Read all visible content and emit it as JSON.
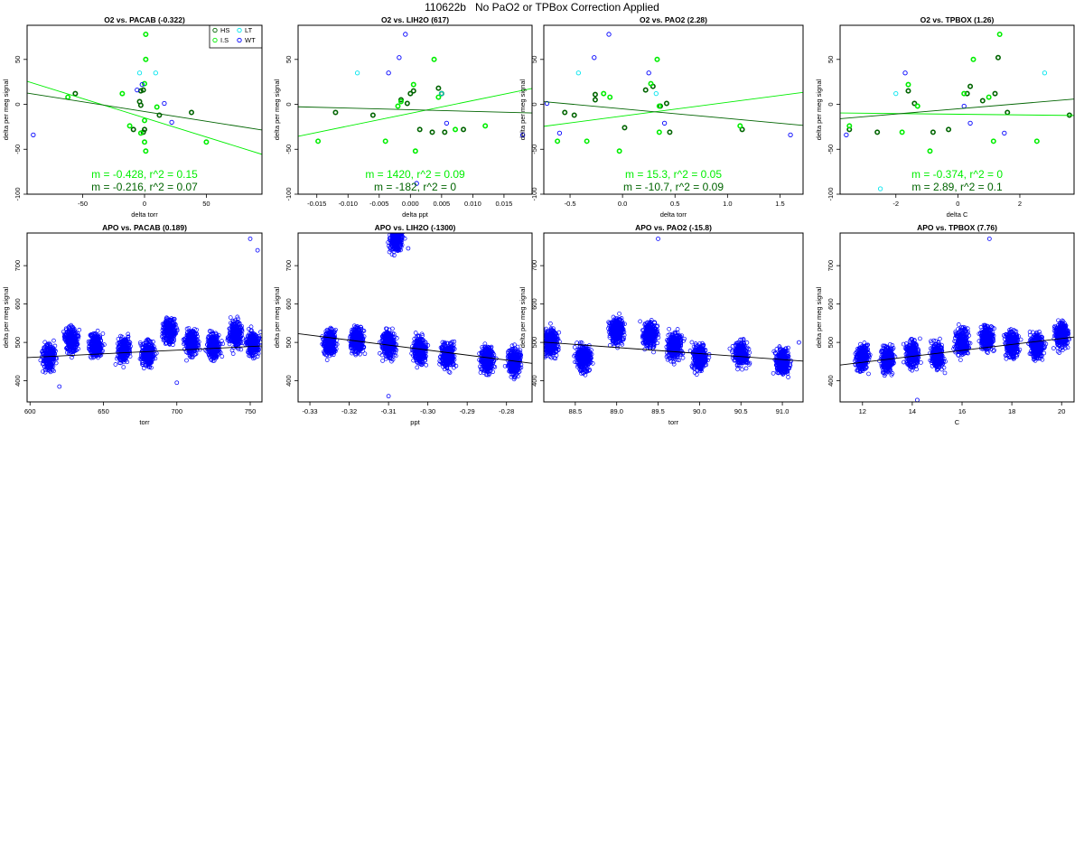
{
  "figure_title": "110622b   No PaO2 or TPBox Correction Applied",
  "colors": {
    "HS": "#006400",
    "I.S": "#00ee00",
    "LT": "#00e5ee",
    "WT": "#0000ff",
    "fit_HS": "#006400",
    "fit_IS": "#00ee00",
    "apo_points": "#0000ff",
    "apo_fit": "#000000"
  },
  "chart_data": [
    {
      "type": "scatter",
      "title": "O2 vs. PACAB (-0.322)",
      "xlabel": "delta torr",
      "ylabel": "delta per meg signal",
      "xlim": [
        -95,
        95
      ],
      "ylim": [
        -100,
        88
      ],
      "xticks": [
        -50,
        0,
        50
      ],
      "xticklabels": [
        "-50",
        "0",
        "50"
      ],
      "yticks": [
        -100,
        -50,
        0,
        50
      ],
      "yticklabels": [
        "-100",
        "-50",
        "0",
        "50"
      ],
      "legend": {
        "placement": "top-right",
        "entries": [
          "HS",
          "LT",
          "I.S",
          "WT"
        ]
      },
      "series": [
        {
          "name": "HS",
          "points": [
            [
              -56,
              12
            ],
            [
              -9,
              -28
            ],
            [
              -4,
              3
            ],
            [
              -3,
              -1
            ],
            [
              -3,
              15
            ],
            [
              -1,
              16
            ],
            [
              0,
              -28
            ],
            [
              12,
              -12
            ],
            [
              38,
              -9
            ],
            [
              -1,
              -31
            ]
          ]
        },
        {
          "name": "I.S",
          "points": [
            [
              -62,
              8
            ],
            [
              -18,
              12
            ],
            [
              -12,
              -24
            ],
            [
              -3,
              -32
            ],
            [
              0,
              23
            ],
            [
              0,
              -42
            ],
            [
              1,
              50
            ],
            [
              1,
              -52
            ],
            [
              0,
              -18
            ],
            [
              10,
              -3
            ],
            [
              50,
              -42
            ],
            [
              1,
              78
            ]
          ]
        },
        {
          "name": "LT",
          "points": [
            [
              9,
              35
            ],
            [
              -4,
              35
            ]
          ]
        },
        {
          "name": "WT",
          "points": [
            [
              -90,
              -34
            ],
            [
              -2,
              22
            ],
            [
              16,
              1
            ],
            [
              22,
              -20
            ],
            [
              -6,
              16
            ]
          ]
        }
      ],
      "fits": [
        {
          "name": "I.S",
          "slope": -0.428,
          "intercept": -15,
          "label": "m = -0.428, r^2 = 0.15"
        },
        {
          "name": "HS",
          "slope": -0.216,
          "intercept": -8,
          "label": "m = -0.216, r^2 = 0.07"
        }
      ]
    },
    {
      "type": "scatter",
      "title": "O2 vs. LIH2O (617)",
      "xlabel": "delta ppt",
      "ylabel": "delta per meg signal",
      "xlim": [
        -0.018,
        0.0195
      ],
      "ylim": [
        -100,
        88
      ],
      "xticks": [
        -0.015,
        -0.01,
        -0.005,
        0,
        0.005,
        0.01,
        0.015
      ],
      "xticklabels": [
        "-0.015",
        "-0.010",
        "-0.005",
        "0.000",
        "0.005",
        "0.010",
        "0.015"
      ],
      "yticks": [
        -100,
        -50,
        0,
        50
      ],
      "yticklabels": [
        "-100",
        "-50",
        "0",
        "50"
      ],
      "series": [
        {
          "name": "HS",
          "points": [
            [
              -0.012,
              -9
            ],
            [
              -0.006,
              -12
            ],
            [
              -0.0015,
              5
            ],
            [
              -0.0005,
              1
            ],
            [
              0,
              12
            ],
            [
              0.0005,
              15
            ],
            [
              0.0015,
              -28
            ],
            [
              0.0045,
              18
            ],
            [
              0.005,
              12
            ],
            [
              0.0055,
              -31
            ],
            [
              0.0085,
              -28
            ],
            [
              0.0035,
              -31
            ]
          ]
        },
        {
          "name": "I.S",
          "points": [
            [
              -0.0148,
              -41
            ],
            [
              -0.004,
              -41
            ],
            [
              -0.002,
              -2
            ],
            [
              0.0005,
              22
            ],
            [
              0.0008,
              -52
            ],
            [
              0.0038,
              50
            ],
            [
              0.0045,
              8
            ],
            [
              0.0072,
              -28
            ],
            [
              0.012,
              -24
            ],
            [
              -0.0015,
              3
            ]
          ]
        },
        {
          "name": "LT",
          "points": [
            [
              -0.0085,
              35
            ],
            [
              0.005,
              12
            ]
          ]
        },
        {
          "name": "WT",
          "points": [
            [
              -0.0035,
              35
            ],
            [
              -0.0018,
              52
            ],
            [
              -0.0008,
              78
            ],
            [
              0.0058,
              -21
            ],
            [
              0.018,
              -34
            ],
            [
              0.001,
              -88
            ]
          ]
        }
      ],
      "fits": [
        {
          "name": "I.S",
          "slope": 1420,
          "intercept": -10,
          "label": "m = 1420, r^2 = 0.09"
        },
        {
          "name": "HS",
          "slope": -182,
          "intercept": -6,
          "label": "m = -182, r^2 = 0"
        }
      ]
    },
    {
      "type": "scatter",
      "title": "O2 vs. PAO2 (2.28)",
      "xlabel": "delta torr",
      "ylabel": "delta per meg signal",
      "xlim": [
        -0.75,
        1.72
      ],
      "ylim": [
        -100,
        88
      ],
      "xticks": [
        -0.5,
        0,
        0.5,
        1,
        1.5
      ],
      "xticklabels": [
        "-0.5",
        "0.0",
        "0.5",
        "1.0",
        "1.5"
      ],
      "yticks": [
        -100,
        -50,
        0,
        50
      ],
      "yticklabels": [
        "-100",
        "-50",
        "0",
        "50"
      ],
      "series": [
        {
          "name": "HS",
          "points": [
            [
              -0.55,
              -9
            ],
            [
              -0.46,
              -12
            ],
            [
              -0.26,
              11
            ],
            [
              -0.26,
              5
            ],
            [
              0.02,
              -26
            ],
            [
              0.22,
              16
            ],
            [
              0.29,
              20
            ],
            [
              0.36,
              -2
            ],
            [
              0.45,
              -31
            ],
            [
              0.42,
              1
            ],
            [
              1.14,
              -28
            ]
          ]
        },
        {
          "name": "I.S",
          "points": [
            [
              -0.62,
              -41
            ],
            [
              -0.34,
              -41
            ],
            [
              -0.18,
              12
            ],
            [
              -0.12,
              8
            ],
            [
              -0.03,
              -52
            ],
            [
              0.27,
              23
            ],
            [
              0.33,
              50
            ],
            [
              0.35,
              -31
            ],
            [
              1.12,
              -24
            ],
            [
              0.35,
              -2
            ]
          ]
        },
        {
          "name": "LT",
          "points": [
            [
              -0.42,
              35
            ],
            [
              0.32,
              12
            ]
          ]
        },
        {
          "name": "WT",
          "points": [
            [
              -0.27,
              52
            ],
            [
              -0.13,
              78
            ],
            [
              0.25,
              35
            ],
            [
              0.4,
              -21
            ],
            [
              1.6,
              -34
            ],
            [
              -0.6,
              -32
            ],
            [
              -0.72,
              1
            ]
          ]
        }
      ],
      "fits": [
        {
          "name": "I.S",
          "slope": 15.3,
          "intercept": -13,
          "label": "m = 15.3, r^2 = 0.05"
        },
        {
          "name": "HS",
          "slope": -10.7,
          "intercept": -5,
          "label": "m = -10.7, r^2 = 0.09"
        }
      ]
    },
    {
      "type": "scatter",
      "title": "O2 vs. TPBOX (1.26)",
      "xlabel": "delta C",
      "ylabel": "delta per meg signal",
      "xlim": [
        -3.8,
        3.75
      ],
      "ylim": [
        -100,
        88
      ],
      "xticks": [
        -2,
        0,
        2
      ],
      "xticklabels": [
        "-2",
        "0",
        "2"
      ],
      "yticks": [
        -100,
        -50,
        0,
        50
      ],
      "yticklabels": [
        "-100",
        "-50",
        "0",
        "50"
      ],
      "series": [
        {
          "name": "HS",
          "points": [
            [
              -3.5,
              -28
            ],
            [
              -2.6,
              -31
            ],
            [
              -1.6,
              15
            ],
            [
              -1.4,
              1
            ],
            [
              -0.8,
              -31
            ],
            [
              -0.3,
              -28
            ],
            [
              0.3,
              12
            ],
            [
              0.4,
              20
            ],
            [
              0.8,
              4
            ],
            [
              1.2,
              12
            ],
            [
              1.3,
              52
            ],
            [
              1.6,
              -9
            ],
            [
              3.6,
              -12
            ]
          ]
        },
        {
          "name": "I.S",
          "points": [
            [
              -3.5,
              -24
            ],
            [
              -1.8,
              -31
            ],
            [
              -1.6,
              22
            ],
            [
              -1.3,
              -2
            ],
            [
              -0.9,
              -52
            ],
            [
              0.2,
              12
            ],
            [
              0.5,
              50
            ],
            [
              1.0,
              8
            ],
            [
              1.15,
              -41
            ],
            [
              2.55,
              -41
            ],
            [
              1.35,
              78
            ]
          ]
        },
        {
          "name": "LT",
          "points": [
            [
              -2.0,
              12
            ],
            [
              2.8,
              35
            ],
            [
              -2.5,
              -94
            ]
          ]
        },
        {
          "name": "WT",
          "points": [
            [
              -3.6,
              -34
            ],
            [
              -1.7,
              35
            ],
            [
              0.4,
              -21
            ],
            [
              1.5,
              -32
            ],
            [
              0.2,
              -2
            ]
          ]
        }
      ],
      "fits": [
        {
          "name": "I.S",
          "slope": -0.374,
          "intercept": -11,
          "label": "m = -0.374, r^2 = 0"
        },
        {
          "name": "HS",
          "slope": 2.89,
          "intercept": -5,
          "label": "m = 2.89, r^2 = 0.1"
        }
      ]
    },
    {
      "type": "scatter",
      "title": "APO vs. PACAB (0.189)",
      "xlabel": "torr",
      "ylabel": "delta per meg signal",
      "xlim": [
        598,
        758
      ],
      "ylim": [
        345,
        785
      ],
      "xticks": [
        600,
        650,
        700,
        750
      ],
      "xticklabels": [
        "600",
        "650",
        "700",
        "750"
      ],
      "yticks": [
        400,
        500,
        600,
        700
      ],
      "yticklabels": [
        "400",
        "500",
        "600",
        "700"
      ],
      "series": [
        {
          "name": "",
          "points": [
            [
              613,
              460
            ],
            [
              628,
              505
            ],
            [
              645,
              490
            ],
            [
              664,
              480
            ],
            [
              680,
              470
            ],
            [
              695,
              530
            ],
            [
              710,
              500
            ],
            [
              725,
              490
            ],
            [
              740,
              520
            ],
            [
              752,
              495
            ],
            [
              750,
              770
            ],
            [
              755,
              740
            ],
            [
              620,
              385
            ],
            [
              700,
              395
            ]
          ]
        }
      ],
      "fits": [
        {
          "name": "fit",
          "slope": 0.189,
          "intercept": 347.5,
          "label": ""
        }
      ]
    },
    {
      "type": "scatter",
      "title": "APO vs. LIH2O (-1300)",
      "xlabel": "ppt",
      "ylabel": "delta per meg signal",
      "xlim": [
        -0.333,
        -0.2735
      ],
      "ylim": [
        345,
        785
      ],
      "xticks": [
        -0.33,
        -0.32,
        -0.31,
        -0.3,
        -0.29,
        -0.28
      ],
      "xticklabels": [
        "-0.33",
        "-0.32",
        "-0.31",
        "-0.30",
        "-0.29",
        "-0.28"
      ],
      "yticks": [
        400,
        500,
        600,
        700
      ],
      "yticklabels": [
        "400",
        "500",
        "600",
        "700"
      ],
      "series": [
        {
          "name": "",
          "points": [
            [
              -0.325,
              500
            ],
            [
              -0.318,
              505
            ],
            [
              -0.31,
              495
            ],
            [
              -0.302,
              480
            ],
            [
              -0.295,
              465
            ],
            [
              -0.285,
              455
            ],
            [
              -0.278,
              450
            ],
            [
              -0.308,
              770
            ],
            [
              -0.305,
              745
            ],
            [
              -0.31,
              360
            ]
          ]
        }
      ],
      "fits": [
        {
          "name": "fit",
          "slope": -1300,
          "intercept": 90,
          "label": ""
        }
      ]
    },
    {
      "type": "scatter",
      "title": "APO vs. PAO2 (-15.8)",
      "xlabel": "torr",
      "ylabel": "delta per meg signal",
      "xlim": [
        88.12,
        91.25
      ],
      "ylim": [
        345,
        785
      ],
      "xticks": [
        88.5,
        89,
        89.5,
        90,
        90.5,
        91
      ],
      "xticklabels": [
        "88.5",
        "89.0",
        "89.5",
        "90.0",
        "90.5",
        "91.0"
      ],
      "yticks": [
        400,
        500,
        600,
        700
      ],
      "yticklabels": [
        "400",
        "500",
        "600",
        "700"
      ],
      "series": [
        {
          "name": "",
          "points": [
            [
              88.2,
              500
            ],
            [
              88.6,
              460
            ],
            [
              89.0,
              530
            ],
            [
              89.4,
              520
            ],
            [
              89.7,
              490
            ],
            [
              90.0,
              460
            ],
            [
              90.5,
              470
            ],
            [
              91.0,
              450
            ],
            [
              89.5,
              770
            ],
            [
              91.2,
              500
            ]
          ]
        }
      ],
      "fits": [
        {
          "name": "fit",
          "slope": -15.8,
          "intercept": 1893,
          "label": ""
        }
      ]
    },
    {
      "type": "scatter",
      "title": "APO vs. TPBOX (7.76)",
      "xlabel": "C",
      "ylabel": "delta per meg signal",
      "xlim": [
        11.1,
        20.5
      ],
      "ylim": [
        345,
        785
      ],
      "xticks": [
        12,
        14,
        16,
        18,
        20
      ],
      "xticklabels": [
        "12",
        "14",
        "16",
        "18",
        "20"
      ],
      "yticks": [
        400,
        500,
        600,
        700
      ],
      "yticklabels": [
        "400",
        "500",
        "600",
        "700"
      ],
      "series": [
        {
          "name": "",
          "points": [
            [
              12,
              460
            ],
            [
              13,
              455
            ],
            [
              14,
              470
            ],
            [
              15,
              465
            ],
            [
              16,
              500
            ],
            [
              17,
              510
            ],
            [
              18,
              495
            ],
            [
              19,
              490
            ],
            [
              20,
              520
            ],
            [
              17.1,
              770
            ],
            [
              14.2,
              350
            ]
          ]
        }
      ],
      "fits": [
        {
          "name": "fit",
          "slope": 7.76,
          "intercept": 355,
          "label": ""
        }
      ]
    }
  ]
}
